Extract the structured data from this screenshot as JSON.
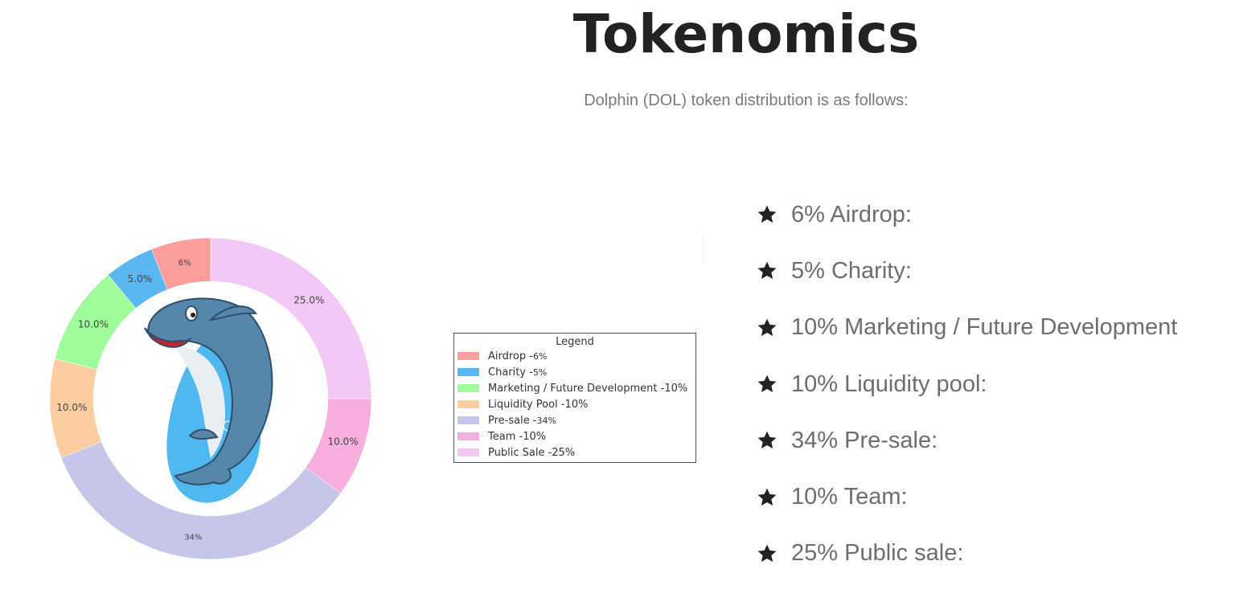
{
  "header": {
    "title": "Tokenomics",
    "subtitle": "Dolphin (DOL) token distribution is as follows:"
  },
  "chart_data": {
    "type": "pie",
    "style": "donut",
    "title": "",
    "categories": [
      "Public Sale",
      "Team",
      "Pre-sale",
      "Liquidity Pool",
      "Marketing / Future Development",
      "Charity",
      "Airdrop"
    ],
    "values": [
      25,
      10,
      34,
      10,
      10,
      5,
      6
    ],
    "slice_labels": [
      "25.0%",
      "10.0%",
      "34%",
      "10.0%",
      "10.0%",
      "5.0%",
      "6%"
    ],
    "colors": [
      "#f3c8f6",
      "#f7addd",
      "#c6c6ea",
      "#fbcda0",
      "#9efc9a",
      "#5ab7f1",
      "#f99e9b"
    ],
    "center_image": "dolphin-mascot",
    "legend": {
      "title": "Legend",
      "position": "right",
      "entries": [
        {
          "name": "Airdrop",
          "value": "6%",
          "color": "#f99e9b"
        },
        {
          "name": "Charity",
          "value": "5%",
          "color": "#5ab7f1"
        },
        {
          "name": "Marketing / Future Development",
          "value": "10%",
          "color": "#9efc9a"
        },
        {
          "name": "Liquidity Pool",
          "value": "10%",
          "color": "#fbcda0"
        },
        {
          "name": "Pre-sale",
          "value": "34%",
          "color": "#c6c6ea"
        },
        {
          "name": "Team",
          "value": "10%",
          "color": "#f7addd"
        },
        {
          "name": "Public Sale",
          "value": "25%",
          "color": "#f3c8f6"
        }
      ]
    }
  },
  "distribution_list": [
    {
      "icon": "star-icon",
      "text": "6% Airdrop:"
    },
    {
      "icon": "star-icon",
      "text": "5% Charity:"
    },
    {
      "icon": "star-icon",
      "text": "10% Marketing / Future Development"
    },
    {
      "icon": "star-icon",
      "text": "10% Liquidity pool:"
    },
    {
      "icon": "star-icon",
      "text": "34% Pre-sale:"
    },
    {
      "icon": "star-icon",
      "text": "10% Team:"
    },
    {
      "icon": "star-icon",
      "text": "25% Public sale:"
    }
  ]
}
